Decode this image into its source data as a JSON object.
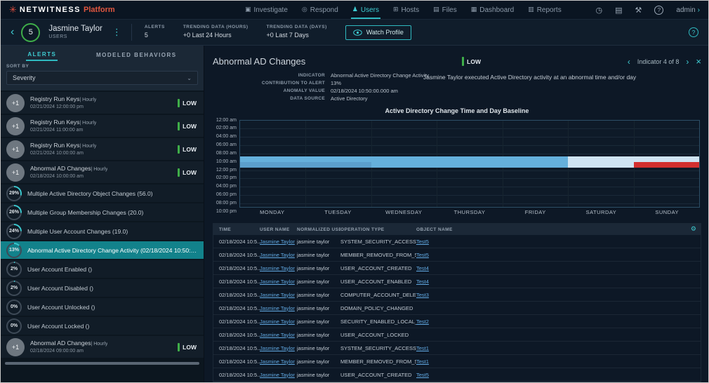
{
  "colors": {
    "accent": "#3bc9cf",
    "severity_low": "#3fae49",
    "selected_row": "#12828b",
    "link_blue": "#61a9e3",
    "ring_rest": "#3e4a57",
    "logo_red": "#e04f3f"
  },
  "topbar": {
    "brand": {
      "name": "NETWITNESS",
      "product": "Platform"
    },
    "nav": [
      {
        "label": "Investigate",
        "active": false
      },
      {
        "label": "Respond",
        "active": false
      },
      {
        "label": "Users",
        "active": true
      },
      {
        "label": "Hosts",
        "active": false
      },
      {
        "label": "Files",
        "active": false
      },
      {
        "label": "Dashboard",
        "active": false
      },
      {
        "label": "Reports",
        "active": false
      }
    ],
    "right_icons": [
      "timer",
      "console",
      "tools",
      "help"
    ],
    "admin_label": "admin"
  },
  "user_header": {
    "score": "5",
    "name": "Jasmine Taylor",
    "type": "USERS",
    "stats": [
      {
        "label": "ALERTS",
        "value": "5"
      },
      {
        "label": "TRENDING DATA (HOURS)",
        "value": "+0  Last 24 Hours"
      },
      {
        "label": "TRENDING DATA (DAYS)",
        "value": "+0  Last 7 Days"
      }
    ],
    "watch_profile_label": "Watch Profile"
  },
  "left_panel": {
    "tabs": [
      {
        "label": "ALERTS",
        "active": true
      },
      {
        "label": "MODELED BEHAVIORS",
        "active": false
      }
    ],
    "sort_by_label": "SORT BY",
    "sort_value": "Severity",
    "items": [
      {
        "type": "alert",
        "badge": "+1",
        "title": "Registry Run Keys",
        "suffix": "| Hourly",
        "time": "02/21/2024 12:00:00 pm",
        "severity": "LOW"
      },
      {
        "type": "alert",
        "badge": "+1",
        "title": "Registry Run Keys",
        "suffix": "| Hourly",
        "time": "02/21/2024 11:00:00 am",
        "severity": "LOW"
      },
      {
        "type": "alert",
        "badge": "+1",
        "title": "Registry Run Keys",
        "suffix": "| Hourly",
        "time": "02/21/2024 10:00:00 am",
        "severity": "LOW"
      },
      {
        "type": "alert",
        "badge": "+1",
        "title": "Abnormal AD Changes",
        "suffix": "| Hourly",
        "time": "02/18/2024 10:00:00 am",
        "severity": "LOW"
      },
      {
        "type": "indicator",
        "pct": 29,
        "pct_label": "29%",
        "label": "Multiple Active Directory Object Changes (56.0)",
        "selected": false
      },
      {
        "type": "indicator",
        "pct": 26,
        "pct_label": "26%",
        "label": "Multiple Group Membership Changes (20.0)",
        "selected": false
      },
      {
        "type": "indicator",
        "pct": 24,
        "pct_label": "24%",
        "label": "Multiple User Account Changes (19.0)",
        "selected": false
      },
      {
        "type": "indicator",
        "pct": 13,
        "pct_label": "13%",
        "label": "Abnormal Active Directory Change Activity (02/18/2024 10:50:0...",
        "selected": true
      },
      {
        "type": "indicator",
        "pct": 2,
        "pct_label": "2%",
        "label": "User Account Enabled ()",
        "selected": false
      },
      {
        "type": "indicator",
        "pct": 2,
        "pct_label": "2%",
        "label": "User Account Disabled ()",
        "selected": false
      },
      {
        "type": "indicator",
        "pct": 0,
        "pct_label": "0%",
        "label": "User Account Unlocked ()",
        "selected": false
      },
      {
        "type": "indicator",
        "pct": 0,
        "pct_label": "0%",
        "label": "User Account Locked ()",
        "selected": false
      },
      {
        "type": "alert",
        "badge": "+1",
        "title": "Abnormal AD Changes",
        "suffix": "| Hourly",
        "time": "02/18/2024 09:00:00 am",
        "severity": "LOW"
      }
    ]
  },
  "detail": {
    "title": "Abnormal AD Changes",
    "severity": "LOW",
    "pager_text": "Indicator 4 of 8",
    "meta": [
      {
        "label": "INDICATOR",
        "value": "Abnormal Active Directory Change Activity"
      },
      {
        "label": "CONTRIBUTION TO ALERT",
        "value": "13%"
      },
      {
        "label": "ANOMALY VALUE",
        "value": "02/18/2024 10:50:00.000 am"
      },
      {
        "label": "DATA SOURCE",
        "value": "Active Directory"
      }
    ],
    "description": "Jasmine Taylor executed Active Directory activity at an abnormal time and/or day"
  },
  "chart_data": {
    "type": "heatmap",
    "title": "Active Directory Change Time and Day Baseline",
    "xlabel": "day of week",
    "ylabel": "time of day",
    "x_ticks": [
      "MONDAY",
      "TUESDAY",
      "WEDNESDAY",
      "THURSDAY",
      "FRIDAY",
      "SATURDAY",
      "SUNDAY"
    ],
    "y_ticks": [
      "12:00 am",
      "02:00 am",
      "04:00 am",
      "06:00 am",
      "08:00 am",
      "10:00 am",
      "12:00 pm",
      "02:00 pm",
      "04:00 pm",
      "06:00 pm",
      "08:00 pm",
      "10:00 pm"
    ],
    "grid": true,
    "bands": [
      {
        "time_row": "09:00 am - 10:00 am",
        "segments": [
          {
            "from_day": 0,
            "to_day": 5,
            "color": "#65b0dc",
            "meaning": "baseline activity Mon-Fri"
          },
          {
            "from_day": 5,
            "to_day": 7,
            "color": "#cfe3f2",
            "meaning": "light activity Sat-Sun"
          }
        ]
      },
      {
        "time_row": "10:00 am - 11:00 am",
        "segments": [
          {
            "from_day": 0,
            "to_day": 2,
            "color": "#5b9fcd",
            "meaning": "baseline activity Mon-Tue"
          },
          {
            "from_day": 2,
            "to_day": 5,
            "color": "#65b0dc",
            "meaning": "baseline activity Wed-Fri"
          },
          {
            "from_day": 5,
            "to_day": 6,
            "color": "#cfe3f2",
            "meaning": "light activity Sat"
          },
          {
            "from_day": 6,
            "to_day": 7,
            "color": "#d32f2f",
            "meaning": "anomaly Sun"
          }
        ]
      }
    ]
  },
  "table": {
    "columns": [
      "TIME",
      "USER NAME",
      "NORMALIZED USER ...",
      "OPERATION TYPE",
      "OBJECT NAME"
    ],
    "rows": [
      {
        "time": "02/18/2024 10:5...",
        "user": "Jasmine Taylor",
        "normalized": "jasmine taylor",
        "operation": "SYSTEM_SECURITY_ACCESS_GRANTE...",
        "object": "Test5"
      },
      {
        "time": "02/18/2024 10:5...",
        "user": "Jasmine Taylor",
        "normalized": "jasmine taylor",
        "operation": "MEMBER_REMOVED_FROM_SECURIT...",
        "object": "Test5"
      },
      {
        "time": "02/18/2024 10:5...",
        "user": "Jasmine Taylor",
        "normalized": "jasmine taylor",
        "operation": "USER_ACCOUNT_CREATED",
        "object": "Test4"
      },
      {
        "time": "02/18/2024 10:5...",
        "user": "Jasmine Taylor",
        "normalized": "jasmine taylor",
        "operation": "USER_ACCOUNT_ENABLED",
        "object": "Test4"
      },
      {
        "time": "02/18/2024 10:5...",
        "user": "Jasmine Taylor",
        "normalized": "jasmine taylor",
        "operation": "COMPUTER_ACCOUNT_DELETED",
        "object": "Test3"
      },
      {
        "time": "02/18/2024 10:5...",
        "user": "Jasmine Taylor",
        "normalized": "jasmine taylor",
        "operation": "DOMAIN_POLICY_CHANGED",
        "object": ""
      },
      {
        "time": "02/18/2024 10:5...",
        "user": "Jasmine Taylor",
        "normalized": "jasmine taylor",
        "operation": "SECURITY_ENABLED_LOCAL_GROUP_...",
        "object": "Test2"
      },
      {
        "time": "02/18/2024 10:5...",
        "user": "Jasmine Taylor",
        "normalized": "jasmine taylor",
        "operation": "USER_ACCOUNT_LOCKED",
        "object": ""
      },
      {
        "time": "02/18/2024 10:5...",
        "user": "Jasmine Taylor",
        "normalized": "jasmine taylor",
        "operation": "SYSTEM_SECURITY_ACCESS_GRANTE...",
        "object": "Test1"
      },
      {
        "time": "02/18/2024 10:5...",
        "user": "Jasmine Taylor",
        "normalized": "jasmine taylor",
        "operation": "MEMBER_REMOVED_FROM_SECURIT...",
        "object": "Test1"
      },
      {
        "time": "02/18/2024 10:5...",
        "user": "Jasmine Taylor",
        "normalized": "jasmine taylor",
        "operation": "USER_ACCOUNT_CREATED",
        "object": "Test5"
      }
    ]
  }
}
